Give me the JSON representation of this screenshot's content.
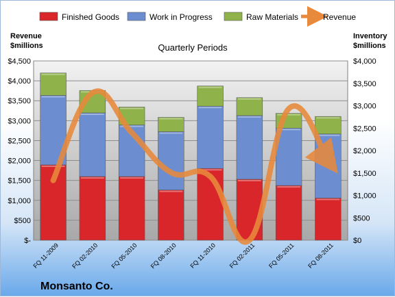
{
  "chart_data": {
    "type": "bar",
    "stacked": true,
    "title": "Quarterly Periods",
    "company": "Monsanto Co.",
    "y_left_label": [
      "Revenue",
      "$millions"
    ],
    "y_right_label": [
      "Inventory",
      "$millions"
    ],
    "categories": [
      "FQ 11-2009",
      "FQ 02-2010",
      "FQ 05-2010",
      "FQ 08-2010",
      "FQ 11-2010",
      "FQ 02-2011",
      "FQ 05-2011",
      "FQ 08-2011"
    ],
    "y_left_ticks": [
      "$-",
      "$500",
      "$1,000",
      "$1,500",
      "$2,000",
      "$2,500",
      "$3,000",
      "$3,500",
      "$4,000",
      "$4,500"
    ],
    "y_right_ticks": [
      "$0",
      "$500",
      "$1,000",
      "$1,500",
      "$2,000",
      "$2,500",
      "$3,000",
      "$3,500",
      "$4,000"
    ],
    "ylim_left": [
      0,
      4500
    ],
    "ylim_right": [
      0,
      4000
    ],
    "series": [
      {
        "name": "Finished Goods",
        "axis": "right",
        "color": "#d9262b",
        "values": [
          1680,
          1420,
          1420,
          1120,
          1600,
          1360,
          1220,
          940
        ]
      },
      {
        "name": "Work in Progress",
        "axis": "right",
        "color": "#6c8ed0",
        "values": [
          1550,
          1420,
          1150,
          1300,
          1390,
          1420,
          1280,
          1430
        ]
      },
      {
        "name": "Raw Materials",
        "axis": "right",
        "color": "#8fb34a",
        "values": [
          500,
          500,
          400,
          320,
          450,
          400,
          330,
          390
        ]
      },
      {
        "name": "Revenue",
        "axis": "left",
        "type": "line",
        "color": "#e8893b",
        "values": [
          1500,
          3700,
          2700,
          1700,
          1600,
          0,
          3300,
          2000
        ]
      }
    ],
    "grid": true,
    "legend": "top"
  }
}
